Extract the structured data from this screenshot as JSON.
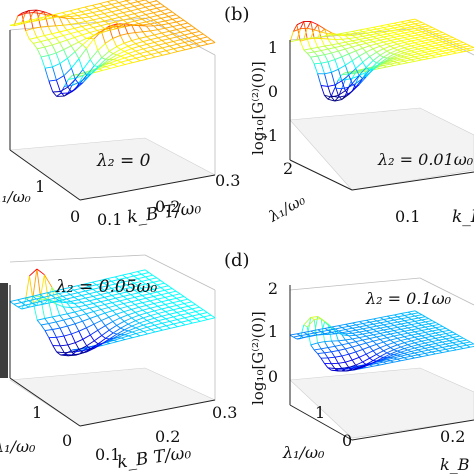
{
  "figure": {
    "panels": [
      {
        "letter": "",
        "annotation": "λ₂ = 0",
        "zlabel": "",
        "zticks": [],
        "xlabel_frag": "λ₁/ω₀",
        "xticks": [
          "1",
          "0"
        ],
        "ylabel": "k_B T/ω₀",
        "yticks": [
          "0.1",
          "0.2",
          "0.3"
        ]
      },
      {
        "letter": "(b)",
        "annotation": "λ₂ = 0.01ω₀",
        "zlabel": "log₁₀[G⁽²⁾(0)]",
        "zticks": [
          "1",
          "0",
          "-1"
        ],
        "xlabel_frag": "λ₁/ω₀",
        "xticks": [
          "2"
        ],
        "ylabel": "k_B",
        "yticks": [
          "0.1"
        ]
      },
      {
        "letter": "",
        "annotation": "λ₂ = 0.05ω₀",
        "zlabel": "",
        "zticks": [],
        "xlabel_frag": "λ₁/ω₀",
        "xticks": [
          "1",
          "0"
        ],
        "ylabel": "k_B T/ω₀",
        "yticks": [
          "0.1",
          "0.2",
          "0.3"
        ]
      },
      {
        "letter": "(d)",
        "annotation": "λ₂ = 0.1ω₀",
        "zlabel": "log₁₀[G⁽²⁾(0)]",
        "zticks": [
          "2",
          "1",
          "0"
        ],
        "xlabel_frag": "λ₁/ω₀",
        "xticks": [
          "1",
          "0"
        ],
        "ylabel": "k_B",
        "yticks": [
          "0.2"
        ]
      }
    ]
  },
  "chart_data": [
    {
      "type": "surface",
      "title": "",
      "annotation": "λ₂ = 0",
      "xlabel": "λ₁/ω₀",
      "ylabel": "k_B T/ω₀",
      "zlabel": "",
      "xlim": [
        0,
        2
      ],
      "ylim": [
        0.1,
        0.3
      ],
      "zlim": [
        -1,
        1
      ]
    },
    {
      "type": "surface",
      "title": "(b)",
      "annotation": "λ₂ = 0.01ω₀",
      "xlabel": "λ₁/ω₀",
      "ylabel": "k_B",
      "zlabel": "log₁₀[G⁽²⁾(0)]",
      "xlim": [
        0,
        2
      ],
      "ylim": [
        0.1,
        0.3
      ],
      "zlim": [
        -1,
        1
      ]
    },
    {
      "type": "surface",
      "title": "",
      "annotation": "λ₂ = 0.05ω₀",
      "xlabel": "λ₁/ω₀",
      "ylabel": "k_B T/ω₀",
      "zlabel": "",
      "xlim": [
        0,
        2
      ],
      "ylim": [
        0.1,
        0.3
      ],
      "zlim": [
        0,
        2
      ]
    },
    {
      "type": "surface",
      "title": "(d)",
      "annotation": "λ₂ = 0.1ω₀",
      "xlabel": "λ₁/ω₀",
      "ylabel": "k_B",
      "zlabel": "log₁₀[G⁽²⁾(0)]",
      "xlim": [
        0,
        2
      ],
      "ylim": [
        0.1,
        0.3
      ],
      "zlim": [
        0,
        2
      ]
    }
  ]
}
